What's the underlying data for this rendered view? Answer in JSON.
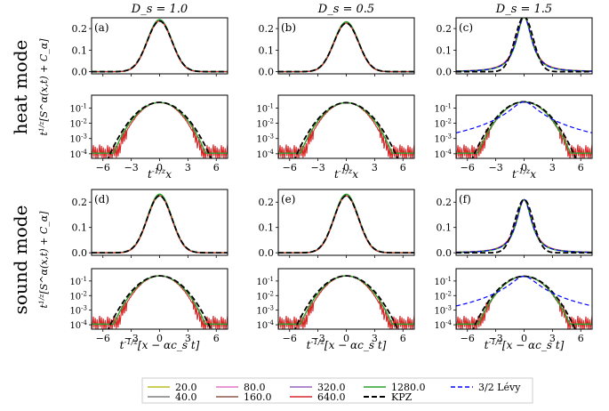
{
  "chart_data": {
    "type": "line",
    "column_titles": [
      "D_s = 1.0",
      "D_s = 0.5",
      "D_s = 1.5"
    ],
    "row_labels": [
      "heat mode",
      "sound mode"
    ],
    "ylabel_left": "t^{1/z}[S^α(x,t) + C_α]",
    "xlabel_heat": "t^{-1/z}x",
    "xlabel_sound": "t^{-1/z}[x − αc_s t]",
    "x_ticks": [
      -6,
      -3,
      0,
      3,
      6
    ],
    "xlim": [
      -7.2,
      7.2
    ],
    "linear_ylim": [
      -0.01,
      0.25
    ],
    "linear_yticks": [
      0.0,
      0.1,
      0.2
    ],
    "linear_ytick_labels": [
      "0.0",
      "0.1",
      "0.2"
    ],
    "log_ylim": [
      5e-05,
      0.7
    ],
    "log_yticks": [
      0.0001,
      0.001,
      0.01,
      0.1
    ],
    "log_ytick_labels": [
      "10^{-4}",
      "10^{-3}",
      "10^{-2}",
      "10^{-1}"
    ],
    "panels": [
      {
        "label": "(a)",
        "mode": "heat",
        "Ds": 1.0,
        "peak": 0.235,
        "levy": false
      },
      {
        "label": "(b)",
        "mode": "heat",
        "Ds": 0.5,
        "peak": 0.225,
        "levy": false
      },
      {
        "label": "(c)",
        "mode": "heat",
        "Ds": 1.5,
        "peak": 0.255,
        "levy": true
      },
      {
        "label": "(d)",
        "mode": "sound",
        "Ds": 1.0,
        "peak": 0.225,
        "levy": false
      },
      {
        "label": "(e)",
        "mode": "sound",
        "Ds": 0.5,
        "peak": 0.225,
        "levy": false
      },
      {
        "label": "(f)",
        "mode": "sound",
        "Ds": 1.5,
        "peak": 0.21,
        "levy": true
      }
    ],
    "series": [
      {
        "name": "20.0",
        "color": "#bcbd22",
        "style": "solid"
      },
      {
        "name": "40.0",
        "color": "#7f7f7f",
        "style": "solid"
      },
      {
        "name": "80.0",
        "color": "#e377c2",
        "style": "solid"
      },
      {
        "name": "160.0",
        "color": "#8c564b",
        "style": "solid"
      },
      {
        "name": "320.0",
        "color": "#9467bd",
        "style": "solid"
      },
      {
        "name": "640.0",
        "color": "#d62728",
        "style": "solid"
      },
      {
        "name": "1280.0",
        "color": "#2ca02c",
        "style": "solid"
      },
      {
        "name": "KPZ",
        "color": "#000000",
        "style": "dashed"
      },
      {
        "name": "3/2 Lévy",
        "color": "#0000ff",
        "style": "dashed"
      }
    ]
  }
}
